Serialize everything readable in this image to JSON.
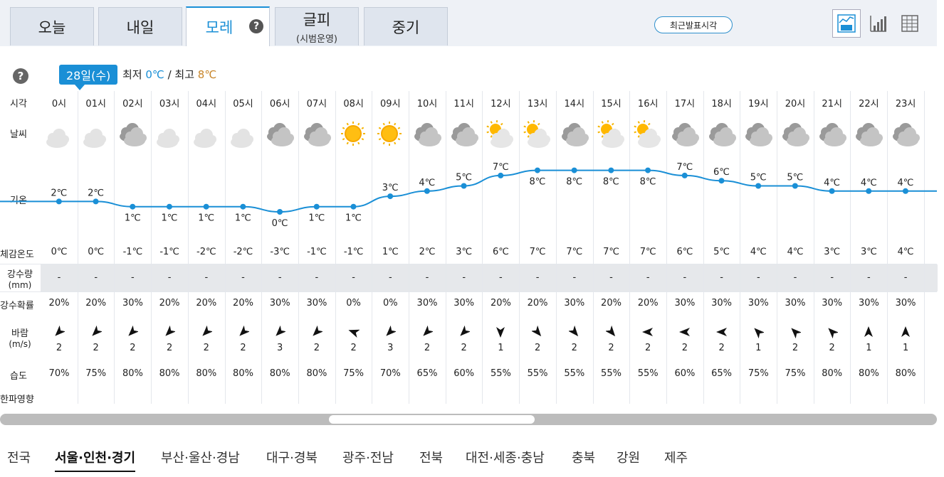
{
  "tabs": [
    {
      "label": "오늘",
      "sub": ""
    },
    {
      "label": "내일",
      "sub": ""
    },
    {
      "label": "모레",
      "sub": "",
      "active": true
    },
    {
      "label": "글피",
      "sub": "(시범운영)"
    },
    {
      "label": "중기",
      "sub": ""
    }
  ],
  "help_glyph": "?",
  "latest_button": "최근발표시각",
  "view_icons": [
    "graph-table-icon",
    "bar-chart-icon",
    "table-icon"
  ],
  "date_badge": "28일(수)",
  "minmax": {
    "min_label": "최저",
    "min": "0℃",
    "sep": "/",
    "max_label": "최고",
    "max": "8℃"
  },
  "row_labels": {
    "time": "시각",
    "weather": "날씨",
    "temp": "기온",
    "feels": "체감온도",
    "precip": "강수량",
    "precip_unit": "(mm)",
    "prob": "강수확률",
    "wind": "바람",
    "wind_unit": "(m/s)",
    "humidity": "습도",
    "cold": "한파영향"
  },
  "hours": [
    {
      "time": "0시",
      "icon": "night-cloud",
      "temp": 2,
      "feels": "0℃",
      "precip": "-",
      "prob": "20%",
      "wind_dir": 225,
      "wind": "2",
      "hum": "70%"
    },
    {
      "time": "01시",
      "icon": "night-cloud",
      "temp": 2,
      "feels": "0℃",
      "precip": "-",
      "prob": "20%",
      "wind_dir": 225,
      "wind": "2",
      "hum": "75%"
    },
    {
      "time": "02시",
      "icon": "cloudy",
      "temp": 1,
      "feels": "-1℃",
      "precip": "-",
      "prob": "30%",
      "wind_dir": 225,
      "wind": "2",
      "hum": "80%"
    },
    {
      "time": "03시",
      "icon": "night-cloud",
      "temp": 1,
      "feels": "-1℃",
      "precip": "-",
      "prob": "20%",
      "wind_dir": 225,
      "wind": "2",
      "hum": "80%"
    },
    {
      "time": "04시",
      "icon": "night-cloud",
      "temp": 1,
      "feels": "-2℃",
      "precip": "-",
      "prob": "20%",
      "wind_dir": 225,
      "wind": "2",
      "hum": "80%"
    },
    {
      "time": "05시",
      "icon": "night-cloud",
      "temp": 1,
      "feels": "-2℃",
      "precip": "-",
      "prob": "20%",
      "wind_dir": 225,
      "wind": "2",
      "hum": "80%"
    },
    {
      "time": "06시",
      "icon": "cloudy",
      "temp": 0,
      "feels": "-3℃",
      "precip": "-",
      "prob": "30%",
      "wind_dir": 225,
      "wind": "3",
      "hum": "80%"
    },
    {
      "time": "07시",
      "icon": "cloudy",
      "temp": 1,
      "feels": "-1℃",
      "precip": "-",
      "prob": "30%",
      "wind_dir": 225,
      "wind": "2",
      "hum": "80%"
    },
    {
      "time": "08시",
      "icon": "sunny",
      "temp": 1,
      "feels": "-1℃",
      "precip": "-",
      "prob": "0%",
      "wind_dir": 290,
      "wind": "2",
      "hum": "75%"
    },
    {
      "time": "09시",
      "icon": "sunny",
      "temp": 3,
      "feels": "1℃",
      "precip": "-",
      "prob": "0%",
      "wind_dir": 225,
      "wind": "3",
      "hum": "70%"
    },
    {
      "time": "10시",
      "icon": "cloudy",
      "temp": 4,
      "feels": "2℃",
      "precip": "-",
      "prob": "30%",
      "wind_dir": 225,
      "wind": "2",
      "hum": "65%"
    },
    {
      "time": "11시",
      "icon": "cloudy",
      "temp": 5,
      "feels": "3℃",
      "precip": "-",
      "prob": "30%",
      "wind_dir": 225,
      "wind": "2",
      "hum": "60%"
    },
    {
      "time": "12시",
      "icon": "sun-cloud",
      "temp": 7,
      "feels": "6℃",
      "precip": "-",
      "prob": "20%",
      "wind_dir": 180,
      "wind": "1",
      "hum": "55%"
    },
    {
      "time": "13시",
      "icon": "sun-cloud",
      "temp": 8,
      "feels": "7℃",
      "precip": "-",
      "prob": "20%",
      "wind_dir": 140,
      "wind": "2",
      "hum": "55%"
    },
    {
      "time": "14시",
      "icon": "cloudy",
      "temp": 8,
      "feels": "7℃",
      "precip": "-",
      "prob": "30%",
      "wind_dir": 140,
      "wind": "2",
      "hum": "55%"
    },
    {
      "time": "15시",
      "icon": "sun-cloud",
      "temp": 8,
      "feels": "7℃",
      "precip": "-",
      "prob": "20%",
      "wind_dir": 140,
      "wind": "2",
      "hum": "55%"
    },
    {
      "time": "16시",
      "icon": "sun-cloud",
      "temp": 8,
      "feels": "7℃",
      "precip": "-",
      "prob": "20%",
      "wind_dir": 270,
      "wind": "2",
      "hum": "55%"
    },
    {
      "time": "17시",
      "icon": "cloudy",
      "temp": 7,
      "feels": "6℃",
      "precip": "-",
      "prob": "30%",
      "wind_dir": 270,
      "wind": "2",
      "hum": "60%"
    },
    {
      "time": "18시",
      "icon": "cloudy",
      "temp": 6,
      "feels": "5℃",
      "precip": "-",
      "prob": "30%",
      "wind_dir": 270,
      "wind": "2",
      "hum": "65%"
    },
    {
      "time": "19시",
      "icon": "cloudy",
      "temp": 5,
      "feels": "4℃",
      "precip": "-",
      "prob": "30%",
      "wind_dir": 315,
      "wind": "1",
      "hum": "75%"
    },
    {
      "time": "20시",
      "icon": "cloudy",
      "temp": 5,
      "feels": "4℃",
      "precip": "-",
      "prob": "30%",
      "wind_dir": 315,
      "wind": "2",
      "hum": "75%"
    },
    {
      "time": "21시",
      "icon": "cloudy",
      "temp": 4,
      "feels": "3℃",
      "precip": "-",
      "prob": "30%",
      "wind_dir": 315,
      "wind": "2",
      "hum": "80%"
    },
    {
      "time": "22시",
      "icon": "cloudy",
      "temp": 4,
      "feels": "3℃",
      "precip": "-",
      "prob": "30%",
      "wind_dir": 0,
      "wind": "1",
      "hum": "80%"
    },
    {
      "time": "23시",
      "icon": "cloudy",
      "temp": 4,
      "feels": "4℃",
      "precip": "-",
      "prob": "30%",
      "wind_dir": 0,
      "wind": "1",
      "hum": "80%"
    }
  ],
  "temp_labels_above": [
    true,
    true,
    false,
    false,
    false,
    false,
    false,
    false,
    false,
    true,
    true,
    true,
    true,
    false,
    false,
    false,
    false,
    true,
    true,
    true,
    true,
    true,
    true,
    true
  ],
  "colors": {
    "accent": "#1a8fd6",
    "max": "#c8862b",
    "line": "#1a8fd6"
  },
  "regions": [
    "전국",
    "서울·인천·경기",
    "부산·울산·경남",
    "대구·경북",
    "광주·전남",
    "전북",
    "대전·세종·충남",
    "충북",
    "강원",
    "제주"
  ],
  "active_region": 1
}
